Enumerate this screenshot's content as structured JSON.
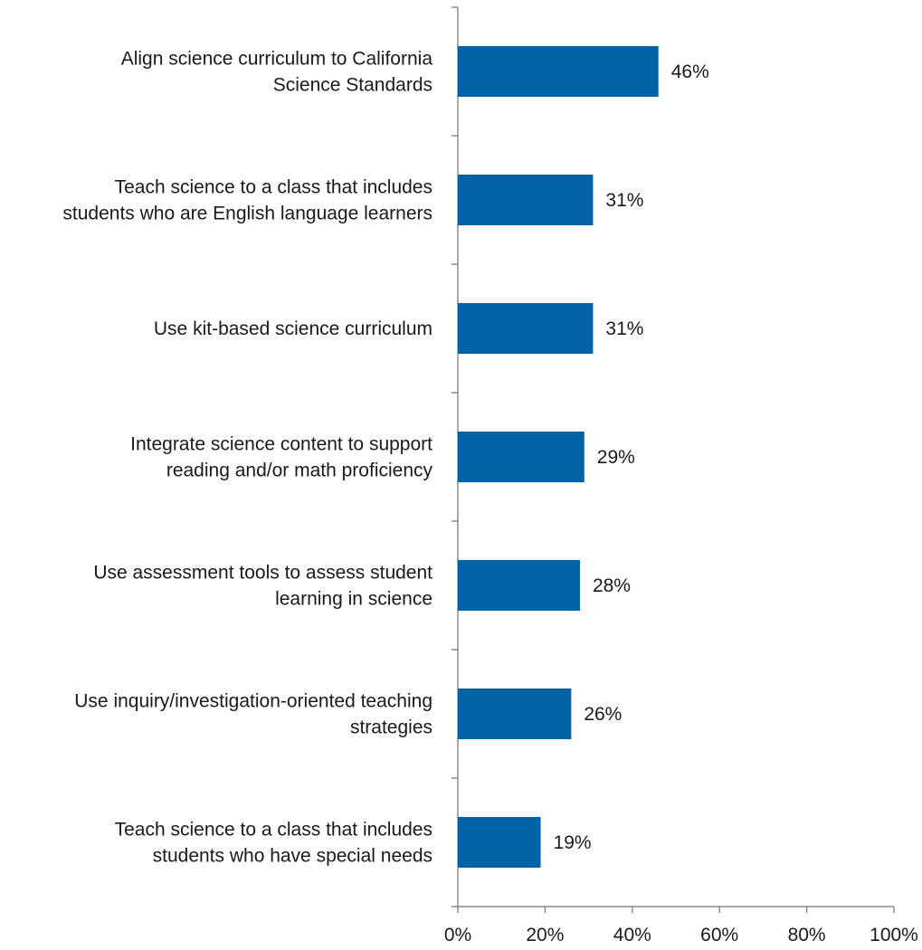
{
  "chart_data": {
    "type": "bar",
    "orientation": "horizontal",
    "categories": [
      [
        "Align science curriculum to California",
        "Science Standards"
      ],
      [
        "Teach science to a class that includes",
        "students who are English language learners"
      ],
      [
        "Use kit-based science curriculum"
      ],
      [
        "Integrate science content to support",
        "reading and/or math proficiency"
      ],
      [
        "Use assessment tools to assess student",
        "learning in science"
      ],
      [
        "Use inquiry/investigation-oriented teaching",
        "strategies"
      ],
      [
        "Teach science to a class that includes",
        "students who have special needs"
      ]
    ],
    "values": [
      46,
      31,
      31,
      29,
      28,
      26,
      19
    ],
    "data_labels": [
      "46%",
      "31%",
      "31%",
      "29%",
      "28%",
      "26%",
      "19%"
    ],
    "x_ticks": [
      "0%",
      "20%",
      "40%",
      "60%",
      "80%",
      "100%"
    ],
    "xlim": [
      0,
      100
    ],
    "bar_color": "#0063A6",
    "grid": false,
    "legend": "none"
  }
}
